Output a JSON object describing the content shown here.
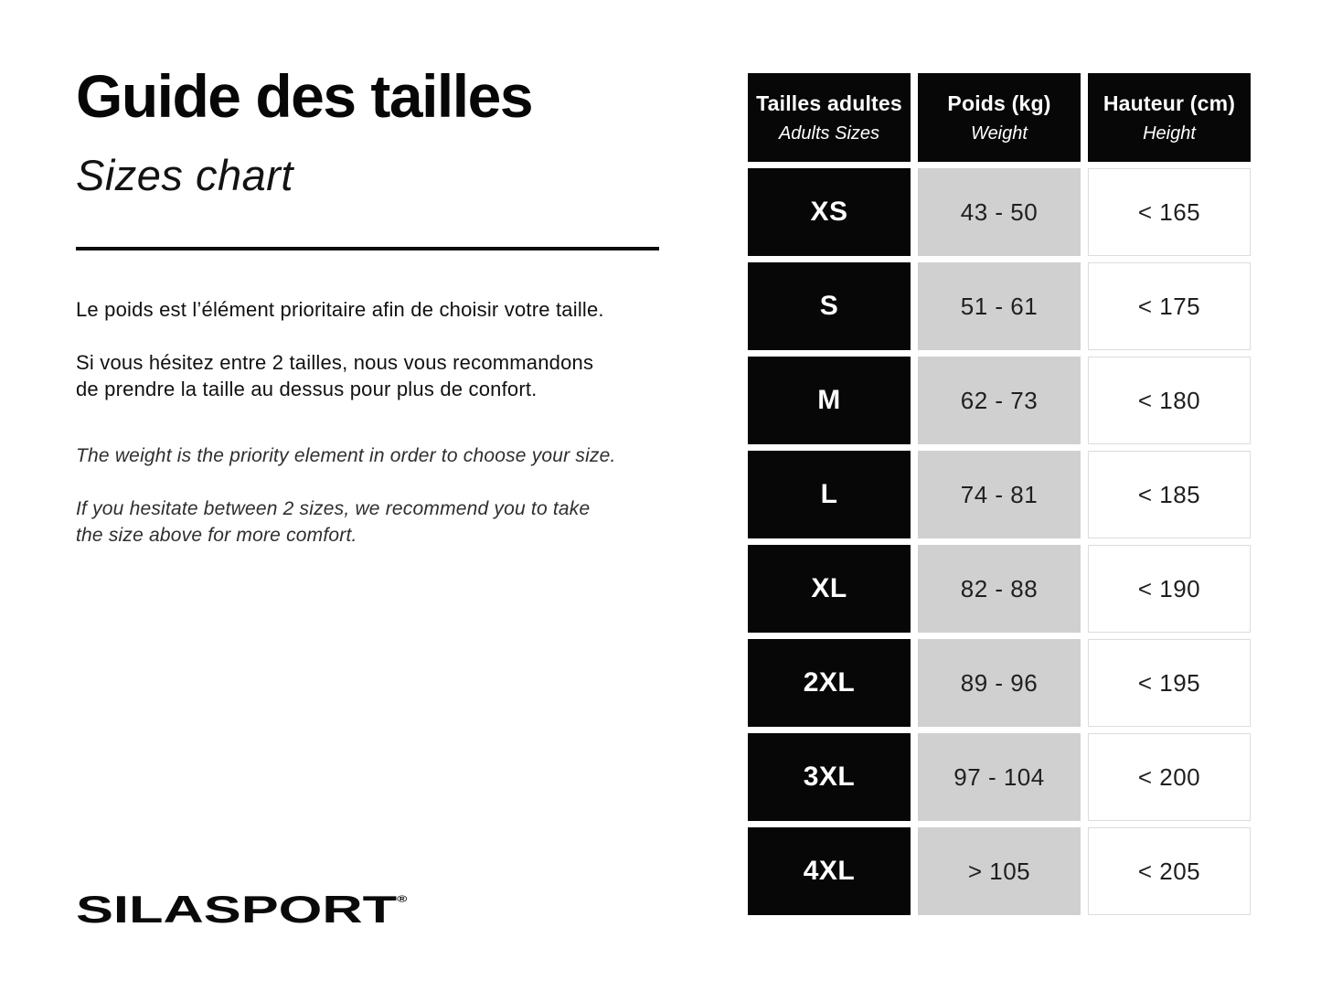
{
  "left": {
    "title": "Guide des tailles",
    "subtitle": "Sizes chart",
    "paragraph_fr_1": [
      "Le poids est l’élément prioritaire afin de choisir votre taille."
    ],
    "paragraph_fr_2": [
      "Si vous hésitez entre 2 tailles, nous vous recommandons",
      "de prendre la taille au dessus pour plus de confort."
    ],
    "paragraph_en_1": [
      "The weight is the priority element in order to choose your size."
    ],
    "paragraph_en_2": [
      "If you hesitate between 2 sizes, we recommend you to take",
      "the size above for more comfort."
    ],
    "logo_text": "SILASPORT",
    "logo_registered": "®"
  },
  "table": {
    "headers": [
      {
        "main": "Tailles adultes",
        "sub": "Adults Sizes"
      },
      {
        "main": "Poids (kg)",
        "sub": "Weight"
      },
      {
        "main": "Hauteur (cm)",
        "sub": "Height"
      }
    ],
    "rows": [
      {
        "size": "XS",
        "weight": "43 - 50",
        "height": "< 165"
      },
      {
        "size": "S",
        "weight": "51 - 61",
        "height": "< 175"
      },
      {
        "size": "M",
        "weight": "62 - 73",
        "height": "< 180"
      },
      {
        "size": "L",
        "weight": "74 - 81",
        "height": "< 185"
      },
      {
        "size": "XL",
        "weight": "82 - 88",
        "height": "< 190"
      },
      {
        "size": "2XL",
        "weight": "89 - 96",
        "height": "< 195"
      },
      {
        "size": "3XL",
        "weight": "97 - 104",
        "height": "< 200"
      },
      {
        "size": "4XL",
        "weight": "> 105",
        "height": "< 205"
      }
    ],
    "colors": {
      "header_bg": "#070707",
      "size_col_bg": "#070707",
      "weight_col_bg": "#d0d0d0",
      "height_col_border": "#dcdcdc",
      "text_on_dark": "#ffffff",
      "text_on_light": "#1f1f1f"
    }
  }
}
